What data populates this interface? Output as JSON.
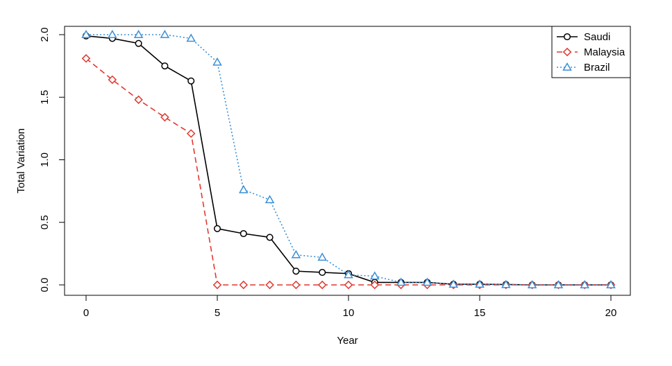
{
  "chart_data": {
    "type": "line",
    "xlabel": "Year",
    "ylabel": "Total Variation",
    "xlim": [
      0,
      20
    ],
    "ylim": [
      0,
      2
    ],
    "xticks": [
      0,
      5,
      10,
      15,
      20
    ],
    "yticks": [
      0.0,
      0.5,
      1.0,
      1.5,
      2.0
    ],
    "ytick_labels": [
      "0.0",
      "0.5",
      "1.0",
      "1.5",
      "2.0"
    ],
    "grid": false,
    "legend_position": "top-right",
    "x": [
      0,
      1,
      2,
      3,
      4,
      5,
      6,
      7,
      8,
      9,
      10,
      11,
      12,
      13,
      14,
      15,
      16,
      17,
      18,
      19,
      20
    ],
    "series": [
      {
        "name": "Saudi",
        "color": "#000000",
        "line_style": "solid",
        "marker": "circle",
        "values": [
          1.99,
          1.97,
          1.93,
          1.75,
          1.63,
          0.45,
          0.41,
          0.38,
          0.11,
          0.1,
          0.09,
          0.02,
          0.02,
          0.02,
          0.005,
          0.005,
          0.003,
          0.0,
          0.0,
          0.0,
          0.0
        ]
      },
      {
        "name": "Malaysia",
        "color": "#e2372e",
        "line_style": "dashed",
        "marker": "diamond",
        "values": [
          1.81,
          1.64,
          1.48,
          1.34,
          1.21,
          0.0,
          0.0,
          0.0,
          0.0,
          0.0,
          0.0,
          0.0,
          0.0,
          0.0,
          0.0,
          0.0,
          0.0,
          0.0,
          0.0,
          0.0,
          0.0
        ]
      },
      {
        "name": "Brazil",
        "color": "#3a8fd6",
        "line_style": "dotted",
        "marker": "triangle",
        "values": [
          2.0,
          2.0,
          2.0,
          2.0,
          1.97,
          1.78,
          0.76,
          0.68,
          0.24,
          0.22,
          0.08,
          0.07,
          0.02,
          0.02,
          0.005,
          0.005,
          0.002,
          0.0,
          0.0,
          0.0,
          0.0
        ]
      }
    ]
  }
}
